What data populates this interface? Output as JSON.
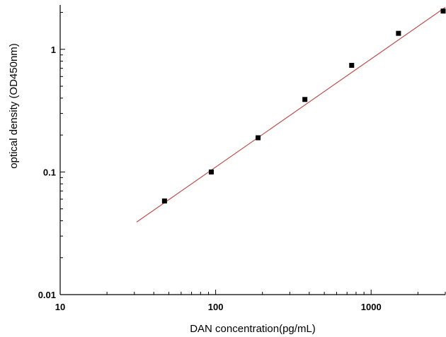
{
  "chart_data": {
    "type": "scatter",
    "title": "",
    "xlabel": "DAN concentration(pg/mL)",
    "ylabel": "optical density (OD450nm)",
    "x_scale": "log",
    "y_scale": "log",
    "xlim": [
      10,
      3000
    ],
    "ylim": [
      0.01,
      2.3
    ],
    "x_ticks": [
      10,
      100,
      1000
    ],
    "x_tick_labels": [
      "10",
      "100",
      "1000"
    ],
    "y_ticks": [
      0.01,
      0.1,
      1
    ],
    "y_tick_labels": [
      "0.01",
      "0.1",
      "1"
    ],
    "grid": false,
    "legend": "none",
    "points": {
      "x": [
        46.88,
        93.75,
        187.5,
        375,
        750,
        1500,
        3000
      ],
      "y": [
        0.058,
        0.1,
        0.19,
        0.39,
        0.74,
        1.35,
        2.05
      ],
      "color": "#000000",
      "marker": "square"
    },
    "fit_line": {
      "x": [
        31,
        3000
      ],
      "y": [
        0.039,
        2.2
      ],
      "color": "#c0504d"
    }
  }
}
